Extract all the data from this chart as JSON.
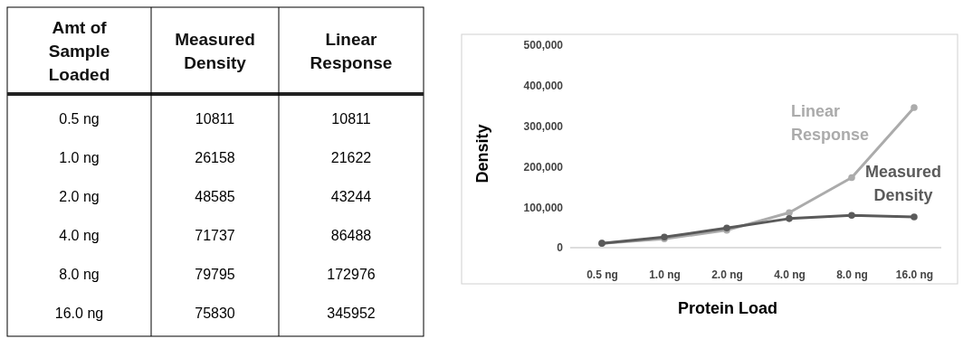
{
  "chart_data": [
    {
      "type": "other",
      "categories": [
        "0.5 ng",
        "1.0 ng",
        "2.0 ng",
        "4.0 ng",
        "8.0 ng",
        "16.0 ng"
      ],
      "series": [
        {
          "name": "Measured Density",
          "values": [
            10811,
            26158,
            48585,
            71737,
            79795,
            75830
          ]
        },
        {
          "name": "Linear Response",
          "values": [
            10811,
            21622,
            43244,
            86488,
            172976,
            345952
          ]
        }
      ],
      "annotations": [
        "Amt of Sample Loaded"
      ],
      "data_labels": true
    },
    {
      "type": "line",
      "categories": [
        "0.5 ng",
        "1.0 ng",
        "2.0 ng",
        "4.0 ng",
        "8.0 ng",
        "16.0 ng"
      ],
      "series": [
        {
          "name": "Measured Density",
          "color": "#5a5a5a",
          "values": [
            10811,
            26158,
            48585,
            71737,
            79795,
            75830
          ]
        },
        {
          "name": "Linear Response",
          "color": "#ababab",
          "values": [
            10811,
            21622,
            43244,
            86488,
            172976,
            345952
          ]
        }
      ],
      "xlabel": "Protein Load",
      "ylabel": "Density",
      "ylim": [
        0,
        500000
      ],
      "yticks": [
        {
          "value": 0,
          "label": "0"
        },
        {
          "value": 100000,
          "label": "100,000"
        },
        {
          "value": 200000,
          "label": "200,000"
        },
        {
          "value": 300000,
          "label": "300,000"
        },
        {
          "value": 400000,
          "label": "400,000"
        },
        {
          "value": 500000,
          "label": "500,000"
        }
      ],
      "marker": "circle",
      "grid": false,
      "line_style": "solid"
    }
  ]
}
